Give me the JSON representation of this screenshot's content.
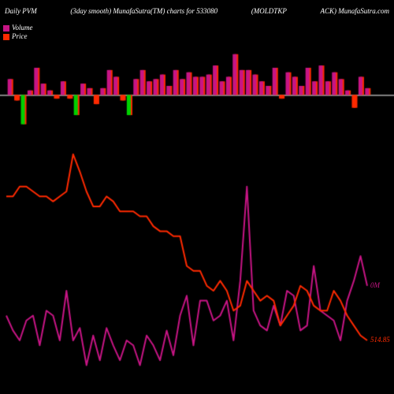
{
  "header": {
    "left": "Daily PVM",
    "center_left": "(3day smooth) MunafaSutra(TM) charts for 533080",
    "center_right": "(MOLDTKP",
    "right": "ACK) MunafaSutra.com"
  },
  "legend": {
    "volume": {
      "label": "Volume",
      "color": "#c71585"
    },
    "price": {
      "label": "Price",
      "color": "#ff2a00"
    }
  },
  "colors": {
    "background": "#000000",
    "text": "#ffffff",
    "grid": "#555555",
    "axis": "#ffffff",
    "vol_up": "#c71585",
    "vol_down": "#00d000",
    "vol_shadow": "#ff2a00",
    "price_line": "#ff2a00",
    "volume_line": "#c71585",
    "label_vol": "#c71585"
  },
  "typography": {
    "header_fontsize": 9,
    "legend_fontsize": 9,
    "label_fontsize": 9,
    "font_style": "italic",
    "font_family": "serif"
  },
  "volume_chart": {
    "type": "bar",
    "baseline_y": 0,
    "ylim": [
      -1,
      1
    ],
    "bar_width": 0.6,
    "shadow_offset_x": 2,
    "bars": [
      {
        "h": 0.35,
        "dir": "up",
        "big": false
      },
      {
        "h": 0.15,
        "dir": "down",
        "big": false
      },
      {
        "h": 0.8,
        "dir": "down",
        "big": true
      },
      {
        "h": 0.1,
        "dir": "up",
        "big": false
      },
      {
        "h": 0.6,
        "dir": "up",
        "big": false
      },
      {
        "h": 0.25,
        "dir": "up",
        "big": false
      },
      {
        "h": 0.1,
        "dir": "up",
        "big": false
      },
      {
        "h": 0.1,
        "dir": "down",
        "big": false
      },
      {
        "h": 0.3,
        "dir": "up",
        "big": false
      },
      {
        "h": 0.1,
        "dir": "down",
        "big": false
      },
      {
        "h": 0.55,
        "dir": "down",
        "big": true
      },
      {
        "h": 0.25,
        "dir": "up",
        "big": false
      },
      {
        "h": 0.15,
        "dir": "up",
        "big": false
      },
      {
        "h": 0.25,
        "dir": "down",
        "big": false
      },
      {
        "h": 0.15,
        "dir": "up",
        "big": false
      },
      {
        "h": 0.55,
        "dir": "up",
        "big": false
      },
      {
        "h": 0.4,
        "dir": "up",
        "big": false
      },
      {
        "h": 0.15,
        "dir": "down",
        "big": false
      },
      {
        "h": 0.55,
        "dir": "down",
        "big": true
      },
      {
        "h": 0.35,
        "dir": "up",
        "big": false
      },
      {
        "h": 0.55,
        "dir": "up",
        "big": false
      },
      {
        "h": 0.3,
        "dir": "up",
        "big": false
      },
      {
        "h": 0.35,
        "dir": "up",
        "big": false
      },
      {
        "h": 0.45,
        "dir": "up",
        "big": false
      },
      {
        "h": 0.2,
        "dir": "up",
        "big": false
      },
      {
        "h": 0.55,
        "dir": "up",
        "big": false
      },
      {
        "h": 0.35,
        "dir": "up",
        "big": false
      },
      {
        "h": 0.5,
        "dir": "up",
        "big": false
      },
      {
        "h": 0.4,
        "dir": "up",
        "big": false
      },
      {
        "h": 0.4,
        "dir": "up",
        "big": false
      },
      {
        "h": 0.45,
        "dir": "up",
        "big": false
      },
      {
        "h": 0.65,
        "dir": "up",
        "big": false
      },
      {
        "h": 0.3,
        "dir": "up",
        "big": false
      },
      {
        "h": 0.4,
        "dir": "up",
        "big": false
      },
      {
        "h": 0.9,
        "dir": "up",
        "big": false
      },
      {
        "h": 0.55,
        "dir": "up",
        "big": false
      },
      {
        "h": 0.55,
        "dir": "up",
        "big": false
      },
      {
        "h": 0.45,
        "dir": "up",
        "big": false
      },
      {
        "h": 0.3,
        "dir": "up",
        "big": false
      },
      {
        "h": 0.2,
        "dir": "up",
        "big": false
      },
      {
        "h": 0.6,
        "dir": "up",
        "big": false
      },
      {
        "h": 0.1,
        "dir": "down",
        "big": false
      },
      {
        "h": 0.5,
        "dir": "up",
        "big": false
      },
      {
        "h": 0.4,
        "dir": "up",
        "big": false
      },
      {
        "h": 0.2,
        "dir": "up",
        "big": false
      },
      {
        "h": 0.6,
        "dir": "up",
        "big": false
      },
      {
        "h": 0.3,
        "dir": "up",
        "big": false
      },
      {
        "h": 0.65,
        "dir": "up",
        "big": false
      },
      {
        "h": 0.3,
        "dir": "up",
        "big": false
      },
      {
        "h": 0.5,
        "dir": "up",
        "big": false
      },
      {
        "h": 0.35,
        "dir": "up",
        "big": false
      },
      {
        "h": 0.1,
        "dir": "up",
        "big": false
      },
      {
        "h": 0.35,
        "dir": "down",
        "big": false
      },
      {
        "h": 0.4,
        "dir": "up",
        "big": false
      },
      {
        "h": 0.15,
        "dir": "up",
        "big": false
      }
    ]
  },
  "line_chart": {
    "type": "line",
    "xlim": [
      0,
      54
    ],
    "ylim": [
      0,
      100
    ],
    "line_width": 2,
    "labels": {
      "volume_end": "0M",
      "price_end": "514.85"
    },
    "price_series": [
      78,
      78,
      82,
      82,
      80,
      78,
      78,
      76,
      78,
      80,
      95,
      88,
      80,
      74,
      74,
      78,
      76,
      72,
      72,
      72,
      70,
      70,
      66,
      64,
      64,
      62,
      62,
      50,
      48,
      48,
      42,
      40,
      44,
      40,
      32,
      34,
      44,
      40,
      36,
      38,
      36,
      26,
      30,
      34,
      42,
      40,
      34,
      32,
      32,
      40,
      36,
      30,
      26,
      22,
      20
    ],
    "volume_series": [
      30,
      24,
      20,
      28,
      30,
      18,
      32,
      30,
      20,
      40,
      20,
      25,
      10,
      22,
      12,
      25,
      18,
      12,
      20,
      18,
      10,
      22,
      18,
      12,
      24,
      14,
      30,
      38,
      18,
      36,
      36,
      28,
      30,
      36,
      20,
      44,
      82,
      32,
      26,
      24,
      34,
      26,
      40,
      38,
      24,
      26,
      50,
      32,
      30,
      28,
      20,
      36,
      44,
      54,
      42
    ]
  }
}
